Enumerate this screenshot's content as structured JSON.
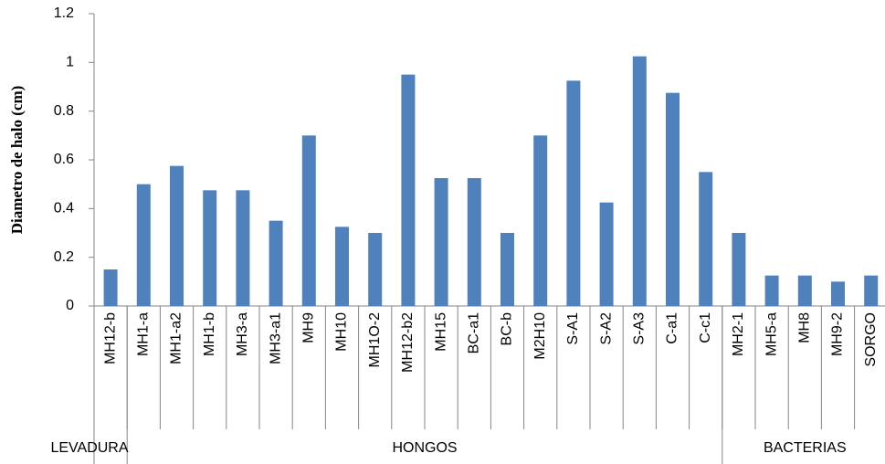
{
  "chart_data": {
    "type": "bar",
    "y_label": "Diametro de halo (cm)",
    "categories": [
      "MH12-b",
      "MH1-a",
      "MH1-a2",
      "MH1-b",
      "MH3-a",
      "MH3-a1",
      "MH9",
      "MH10",
      "MH1O-2",
      "MH12-b2",
      "MH15",
      "BC-a1",
      "BC-b",
      "M2H10",
      "S-A1",
      "S-A2",
      "S-A3",
      "C-a1",
      "C-c1",
      "MH2-1",
      "MH5-a",
      "MH8",
      "MH9-2",
      "SORGO"
    ],
    "values": [
      0.15,
      0.5,
      0.575,
      0.475,
      0.475,
      0.35,
      0.7,
      0.325,
      0.3,
      0.95,
      0.525,
      0.525,
      0.3,
      0.7,
      0.925,
      0.425,
      1.025,
      0.875,
      0.55,
      0.3,
      0.125,
      0.125,
      0.1,
      0.125
    ],
    "color": "#4f81bd",
    "groups": [
      {
        "name": "LEVADURA",
        "size": 1
      },
      {
        "name": "HONGOS",
        "size": 18
      },
      {
        "name": "BACTERIAS",
        "size": 5
      }
    ],
    "ylim": [
      0,
      1.2
    ],
    "yticks": [
      0,
      0.2,
      0.4,
      0.6,
      0.8,
      1,
      1.2
    ],
    "grid": false
  }
}
